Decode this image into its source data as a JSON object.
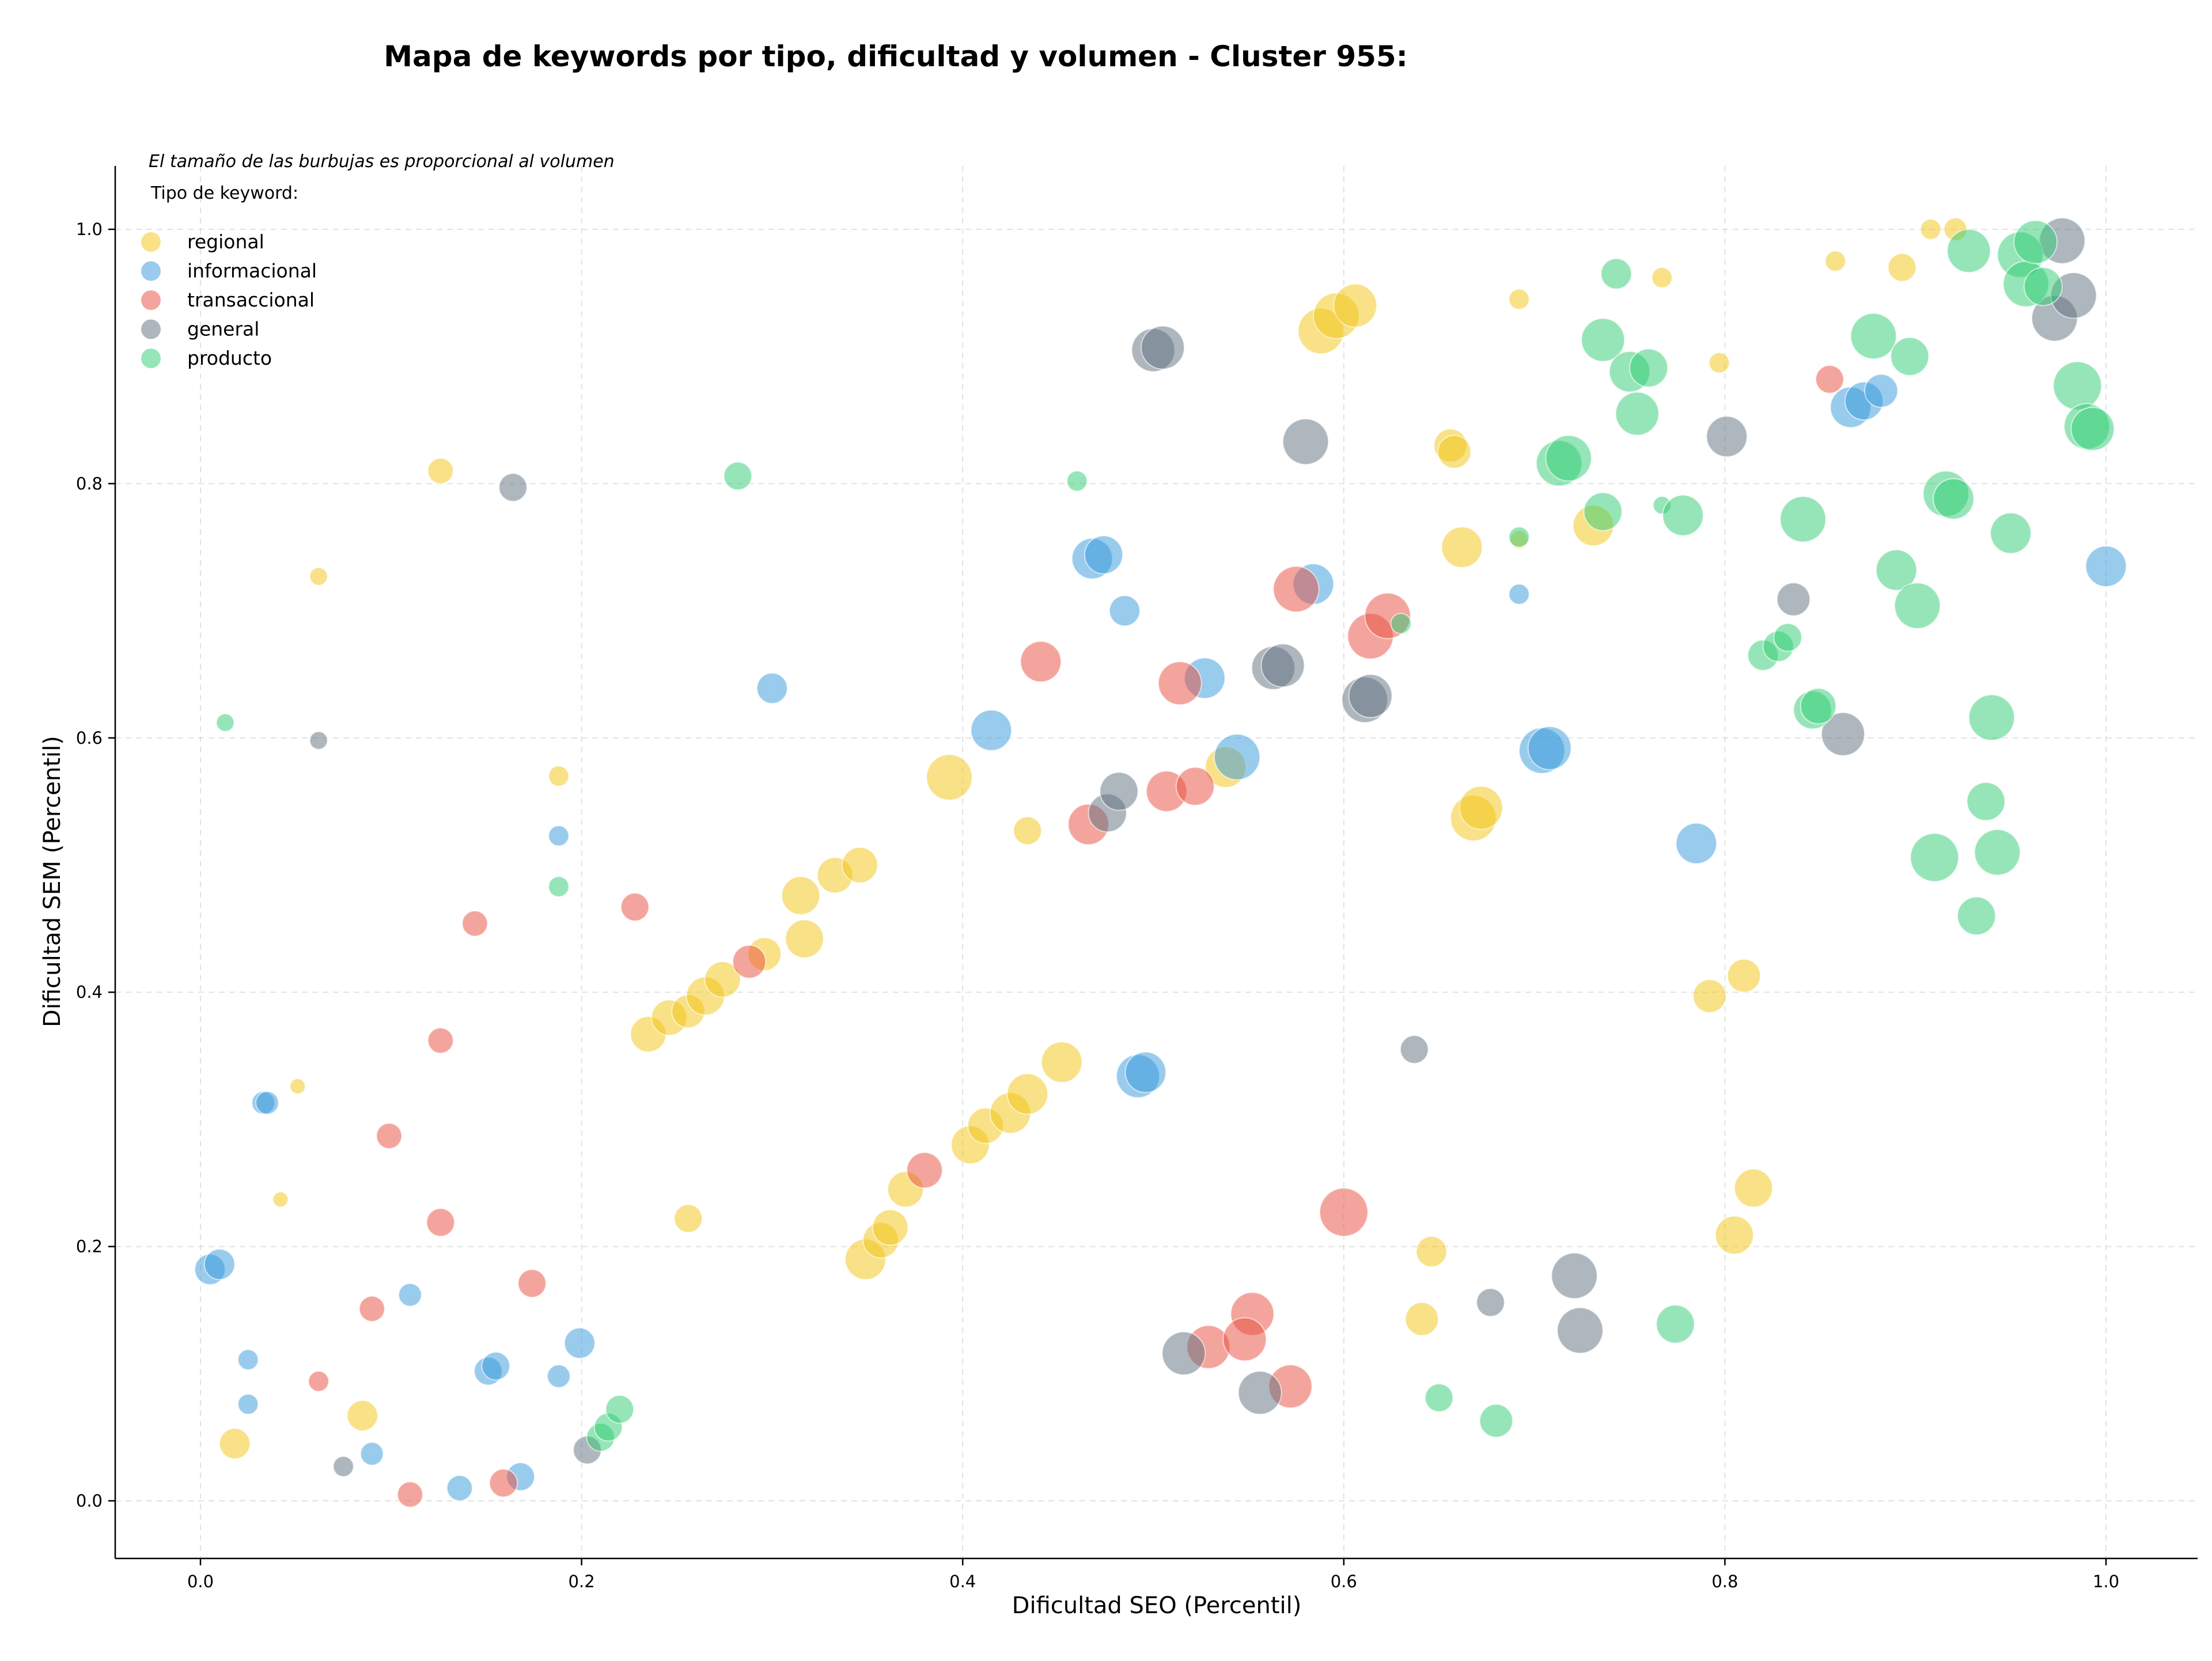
{
  "chart_data": {
    "type": "scatter",
    "title": "Mapa de keywords por tipo, dificultad y volumen - Cluster 955:",
    "xlabel": "Dificultad SEO (Percentil)",
    "ylabel": "Dificultad SEM (Percentil)",
    "annotation": "El tamaño de las burbujas es proporcional al volumen",
    "legend_title": "Tipo de keyword:",
    "legend_position": "top-left",
    "xlim": [
      -0.045,
      1.05
    ],
    "ylim": [
      -0.045,
      1.05
    ],
    "xticks": [
      "0.0",
      "0.2",
      "0.4",
      "0.6",
      "0.8",
      "1.0"
    ],
    "yticks": [
      "0.0",
      "0.2",
      "0.4",
      "0.6",
      "0.8",
      "1.0"
    ],
    "grid": true,
    "series": [
      {
        "name": "regional",
        "color": "#f1c40f",
        "points": [
          [
            0.018,
            0.045,
            12
          ],
          [
            0.042,
            0.237,
            6
          ],
          [
            0.051,
            0.326,
            6
          ],
          [
            0.062,
            0.727,
            7
          ],
          [
            0.085,
            0.067,
            12
          ],
          [
            0.126,
            0.81,
            10
          ],
          [
            0.188,
            0.57,
            8
          ],
          [
            0.256,
            0.222,
            11
          ],
          [
            0.235,
            0.367,
            14
          ],
          [
            0.246,
            0.38,
            14
          ],
          [
            0.256,
            0.385,
            13
          ],
          [
            0.265,
            0.397,
            15
          ],
          [
            0.274,
            0.41,
            14
          ],
          [
            0.296,
            0.43,
            13
          ],
          [
            0.315,
            0.476,
            15
          ],
          [
            0.317,
            0.442,
            15
          ],
          [
            0.333,
            0.492,
            14
          ],
          [
            0.346,
            0.5,
            14
          ],
          [
            0.393,
            0.569,
            18
          ],
          [
            0.349,
            0.19,
            16
          ],
          [
            0.357,
            0.205,
            14
          ],
          [
            0.362,
            0.215,
            14
          ],
          [
            0.37,
            0.245,
            14
          ],
          [
            0.404,
            0.28,
            15
          ],
          [
            0.412,
            0.295,
            14
          ],
          [
            0.425,
            0.305,
            16
          ],
          [
            0.434,
            0.32,
            16
          ],
          [
            0.452,
            0.345,
            16
          ],
          [
            0.434,
            0.527,
            11
          ],
          [
            0.538,
            0.577,
            16
          ],
          [
            0.588,
            0.92,
            18
          ],
          [
            0.596,
            0.932,
            18
          ],
          [
            0.606,
            0.94,
            17
          ],
          [
            0.656,
            0.83,
            13
          ],
          [
            0.658,
            0.825,
            13
          ],
          [
            0.662,
            0.75,
            16
          ],
          [
            0.668,
            0.537,
            18
          ],
          [
            0.672,
            0.545,
            17
          ],
          [
            0.731,
            0.767,
            16
          ],
          [
            0.641,
            0.143,
            13
          ],
          [
            0.646,
            0.196,
            12
          ],
          [
            0.692,
            0.945,
            8
          ],
          [
            0.692,
            0.756,
            7
          ],
          [
            0.767,
            0.962,
            8
          ],
          [
            0.797,
            0.895,
            8
          ],
          [
            0.792,
            0.397,
            13
          ],
          [
            0.81,
            0.413,
            13
          ],
          [
            0.805,
            0.209,
            15
          ],
          [
            0.815,
            0.246,
            15
          ],
          [
            0.858,
            0.975,
            8
          ],
          [
            0.893,
            0.97,
            11
          ],
          [
            0.908,
            1.0,
            8
          ],
          [
            0.921,
            1.0,
            9
          ]
        ]
      },
      {
        "name": "informacional",
        "color": "#3498db",
        "points": [
          [
            0.005,
            0.182,
            12
          ],
          [
            0.01,
            0.186,
            12
          ],
          [
            0.025,
            0.111,
            8
          ],
          [
            0.025,
            0.076,
            8
          ],
          [
            0.033,
            0.313,
            9
          ],
          [
            0.035,
            0.313,
            9
          ],
          [
            0.09,
            0.037,
            9
          ],
          [
            0.11,
            0.162,
            9
          ],
          [
            0.136,
            0.01,
            10
          ],
          [
            0.151,
            0.102,
            11
          ],
          [
            0.155,
            0.106,
            11
          ],
          [
            0.168,
            0.019,
            11
          ],
          [
            0.188,
            0.523,
            8
          ],
          [
            0.188,
            0.098,
            9
          ],
          [
            0.199,
            0.124,
            12
          ],
          [
            0.3,
            0.639,
            12
          ],
          [
            0.415,
            0.606,
            16
          ],
          [
            0.468,
            0.741,
            16
          ],
          [
            0.474,
            0.744,
            15
          ],
          [
            0.485,
            0.7,
            12
          ],
          [
            0.492,
            0.334,
            17
          ],
          [
            0.496,
            0.337,
            16
          ],
          [
            0.527,
            0.647,
            16
          ],
          [
            0.544,
            0.585,
            18
          ],
          [
            0.584,
            0.721,
            16
          ],
          [
            0.692,
            0.713,
            8
          ],
          [
            0.704,
            0.59,
            18
          ],
          [
            0.708,
            0.592,
            17
          ],
          [
            0.785,
            0.517,
            16
          ],
          [
            0.866,
            0.86,
            16
          ],
          [
            0.873,
            0.865,
            15
          ],
          [
            0.882,
            0.873,
            13
          ],
          [
            1.0,
            0.735,
            16
          ]
        ]
      },
      {
        "name": "transaccional",
        "color": "#e74c3c",
        "points": [
          [
            0.062,
            0.094,
            8
          ],
          [
            0.09,
            0.151,
            10
          ],
          [
            0.099,
            0.287,
            10
          ],
          [
            0.11,
            0.005,
            10
          ],
          [
            0.126,
            0.219,
            11
          ],
          [
            0.126,
            0.362,
            10
          ],
          [
            0.144,
            0.454,
            10
          ],
          [
            0.159,
            0.014,
            11
          ],
          [
            0.174,
            0.171,
            11
          ],
          [
            0.228,
            0.467,
            11
          ],
          [
            0.288,
            0.424,
            13
          ],
          [
            0.38,
            0.26,
            14
          ],
          [
            0.441,
            0.66,
            16
          ],
          [
            0.466,
            0.532,
            16
          ],
          [
            0.507,
            0.558,
            16
          ],
          [
            0.514,
            0.643,
            17
          ],
          [
            0.522,
            0.562,
            15
          ],
          [
            0.529,
            0.121,
            17
          ],
          [
            0.552,
            0.147,
            17
          ],
          [
            0.548,
            0.127,
            17
          ],
          [
            0.572,
            0.09,
            17
          ],
          [
            0.6,
            0.227,
            19
          ],
          [
            0.575,
            0.717,
            18
          ],
          [
            0.614,
            0.68,
            18
          ],
          [
            0.623,
            0.696,
            18
          ],
          [
            0.855,
            0.882,
            11
          ]
        ]
      },
      {
        "name": "general",
        "color": "#5d6d7e",
        "points": [
          [
            0.062,
            0.598,
            7
          ],
          [
            0.075,
            0.027,
            8
          ],
          [
            0.164,
            0.797,
            11
          ],
          [
            0.203,
            0.04,
            11
          ],
          [
            0.476,
            0.541,
            15
          ],
          [
            0.482,
            0.558,
            15
          ],
          [
            0.5,
            0.905,
            17
          ],
          [
            0.505,
            0.907,
            17
          ],
          [
            0.516,
            0.116,
            17
          ],
          [
            0.556,
            0.085,
            17
          ],
          [
            0.563,
            0.655,
            17
          ],
          [
            0.568,
            0.657,
            17
          ],
          [
            0.58,
            0.833,
            18
          ],
          [
            0.611,
            0.63,
            18
          ],
          [
            0.614,
            0.633,
            17
          ],
          [
            0.637,
            0.355,
            11
          ],
          [
            0.677,
            0.156,
            11
          ],
          [
            0.721,
            0.177,
            18
          ],
          [
            0.724,
            0.134,
            18
          ],
          [
            0.801,
            0.837,
            16
          ],
          [
            0.836,
            0.709,
            13
          ],
          [
            0.862,
            0.603,
            17
          ],
          [
            0.973,
            0.93,
            18
          ],
          [
            0.977,
            0.991,
            18
          ],
          [
            0.983,
            0.948,
            18
          ]
        ]
      },
      {
        "name": "producto",
        "color": "#2ecc71",
        "points": [
          [
            0.013,
            0.612,
            7
          ],
          [
            0.188,
            0.483,
            8
          ],
          [
            0.21,
            0.05,
            11
          ],
          [
            0.214,
            0.058,
            11
          ],
          [
            0.22,
            0.072,
            11
          ],
          [
            0.282,
            0.806,
            11
          ],
          [
            0.46,
            0.802,
            8
          ],
          [
            0.63,
            0.69,
            8
          ],
          [
            0.65,
            0.081,
            11
          ],
          [
            0.68,
            0.063,
            13
          ],
          [
            0.692,
            0.758,
            8
          ],
          [
            0.713,
            0.816,
            18
          ],
          [
            0.718,
            0.82,
            18
          ],
          [
            0.736,
            0.913,
            17
          ],
          [
            0.736,
            0.778,
            15
          ],
          [
            0.743,
            0.965,
            12
          ],
          [
            0.75,
            0.888,
            16
          ],
          [
            0.754,
            0.855,
            17
          ],
          [
            0.76,
            0.891,
            15
          ],
          [
            0.767,
            0.783,
            7
          ],
          [
            0.774,
            0.139,
            15
          ],
          [
            0.778,
            0.775,
            16
          ],
          [
            0.82,
            0.665,
            12
          ],
          [
            0.828,
            0.672,
            12
          ],
          [
            0.833,
            0.679,
            11
          ],
          [
            0.841,
            0.772,
            18
          ],
          [
            0.846,
            0.622,
            15
          ],
          [
            0.849,
            0.625,
            14
          ],
          [
            0.878,
            0.916,
            18
          ],
          [
            0.89,
            0.732,
            16
          ],
          [
            0.897,
            0.9,
            15
          ],
          [
            0.901,
            0.704,
            18
          ],
          [
            0.91,
            0.506,
            19
          ],
          [
            0.916,
            0.792,
            18
          ],
          [
            0.92,
            0.788,
            16
          ],
          [
            0.928,
            0.983,
            17
          ],
          [
            0.932,
            0.46,
            15
          ],
          [
            0.937,
            0.55,
            15
          ],
          [
            0.94,
            0.616,
            18
          ],
          [
            0.943,
            0.51,
            18
          ],
          [
            0.95,
            0.761,
            16
          ],
          [
            0.955,
            0.98,
            18
          ],
          [
            0.958,
            0.957,
            18
          ],
          [
            0.963,
            0.99,
            17
          ],
          [
            0.967,
            0.955,
            15
          ],
          [
            0.985,
            0.877,
            19
          ],
          [
            0.99,
            0.845,
            18
          ],
          [
            0.993,
            0.843,
            17
          ]
        ]
      }
    ]
  }
}
